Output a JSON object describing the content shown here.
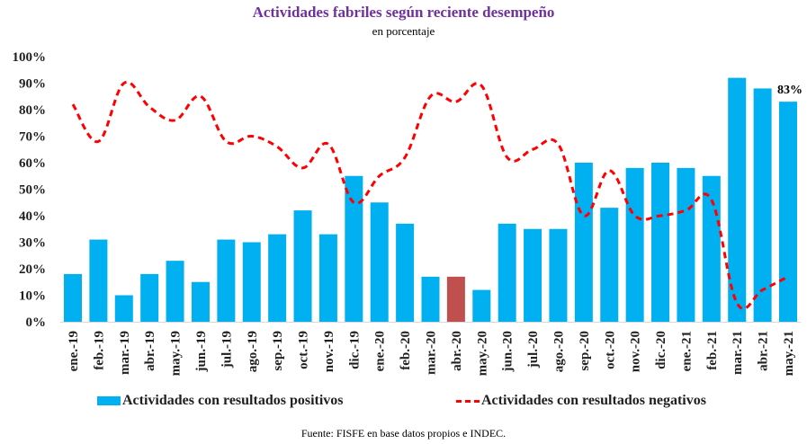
{
  "chart_data": {
    "type": "bar",
    "title": "Actividades fabriles según reciente desempeño",
    "subtitle": "en porcentaje",
    "source": "Fuente: FISFE en base datos propios e INDEC.",
    "xlabel": "",
    "ylabel": "",
    "ylim": [
      0,
      100
    ],
    "yticks": [
      "0%",
      "10%",
      "20%",
      "30%",
      "40%",
      "50%",
      "60%",
      "70%",
      "80%",
      "90%",
      "100%"
    ],
    "grid": false,
    "legend_position": "bottom",
    "categories": [
      "ene.-19",
      "feb.-19",
      "mar.-19",
      "abr.-19",
      "may.-19",
      "jun.-19",
      "jul.-19",
      "ago.-19",
      "sep.-19",
      "oct.-19",
      "nov.-19",
      "dic.-19",
      "ene.-20",
      "feb.-20",
      "mar.-20",
      "abr.-20",
      "may.-20",
      "jun.-20",
      "jul.-20",
      "ago.-20",
      "sep.-20",
      "oct.-20",
      "nov.-20",
      "dic.-20",
      "ene.-21",
      "feb.-21",
      "mar.-21",
      "abr.-21",
      "may.-21"
    ],
    "series": [
      {
        "name": "Actividades con resultados positivos",
        "type": "bar",
        "color": "#00b0f0",
        "highlight_color": "#c0504d",
        "highlight_index": 15,
        "values": [
          18,
          31,
          10,
          18,
          23,
          15,
          31,
          30,
          33,
          42,
          33,
          55,
          45,
          37,
          17,
          17,
          12,
          37,
          35,
          35,
          60,
          43,
          58,
          60,
          58,
          55,
          92,
          88,
          83
        ]
      },
      {
        "name": "Actividades con resultados negativos",
        "type": "line",
        "style": "dashed",
        "color": "#ff0000",
        "values": [
          82,
          68,
          90,
          81,
          76,
          85,
          68,
          70,
          66,
          58,
          67,
          45,
          55,
          62,
          85,
          83,
          89,
          62,
          65,
          67,
          40,
          57,
          40,
          40,
          42,
          46,
          7,
          12,
          17
        ]
      }
    ],
    "annotations": [
      {
        "category": "may.-21",
        "text": "83%"
      }
    ]
  }
}
